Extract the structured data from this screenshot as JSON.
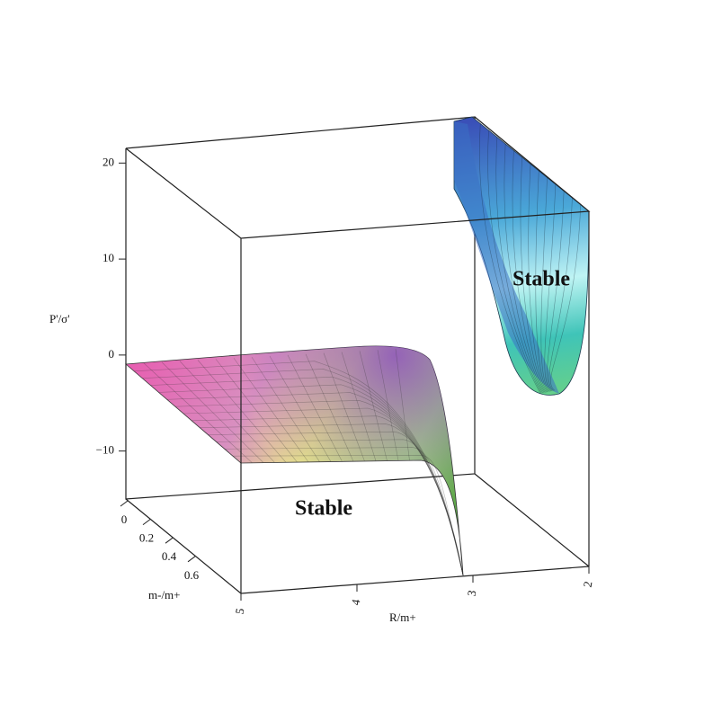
{
  "chart_data": {
    "type": "surface",
    "zlabel": "P'/σ'",
    "ylabel": "m-/m+",
    "xlabel": "R/m+",
    "annotations": [
      "Stable",
      "Stable"
    ],
    "zlim": [
      -15,
      22
    ],
    "zticks": [
      {
        "value": -10,
        "label": "−10"
      },
      0,
      10,
      20
    ],
    "ylim": [
      0,
      1
    ],
    "yticks": [
      0,
      0.2,
      0.4,
      0.6
    ],
    "xlim": [
      5,
      2
    ],
    "xticks": [
      5,
      4,
      3,
      2
    ]
  }
}
